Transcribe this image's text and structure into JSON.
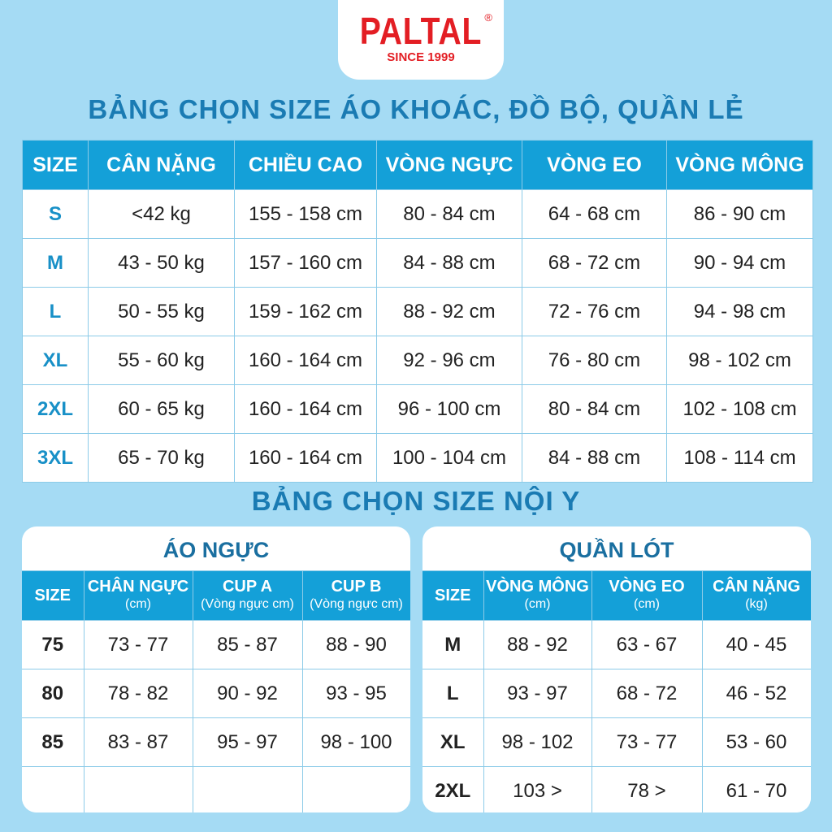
{
  "logo": {
    "brand": "PALTAL",
    "registered": "®",
    "tagline": "SINCE 1999"
  },
  "title_main": "BẢNG CHỌN SIZE ÁO KHOÁC, ĐỒ BỘ, QUẦN LẺ",
  "main_table": {
    "headers": [
      "SIZE",
      "CÂN NẶNG",
      "CHIỀU CAO",
      "VÒNG NGỰC",
      "VÒNG EO",
      "VÒNG MÔNG"
    ],
    "rows": [
      [
        "S",
        "<42 kg",
        "155 - 158 cm",
        "80 - 84 cm",
        "64 - 68 cm",
        "86 - 90 cm"
      ],
      [
        "M",
        "43 - 50 kg",
        "157 - 160 cm",
        "84 - 88 cm",
        "68 - 72 cm",
        "90 - 94 cm"
      ],
      [
        "L",
        "50 - 55 kg",
        "159 - 162 cm",
        "88 - 92 cm",
        "72 - 76 cm",
        "94 - 98 cm"
      ],
      [
        "XL",
        "55 - 60 kg",
        "160 - 164 cm",
        "92 - 96 cm",
        "76 - 80 cm",
        "98 - 102 cm"
      ],
      [
        "2XL",
        "60 - 65 kg",
        "160 - 164 cm",
        "96 - 100 cm",
        "80 - 84 cm",
        "102 - 108 cm"
      ],
      [
        "3XL",
        "65 - 70 kg",
        "160 - 164 cm",
        "100 - 104 cm",
        "84 - 88 cm",
        "108 - 114 cm"
      ]
    ]
  },
  "title_underwear": "BẢNG CHỌN SIZE NỘI Y",
  "bra_table": {
    "title": "ÁO NGỰC",
    "headers": [
      {
        "label": "SIZE",
        "sub": ""
      },
      {
        "label": "CHÂN NGỰC",
        "sub": "(cm)"
      },
      {
        "label": "CUP A",
        "sub": "(Vòng ngực cm)"
      },
      {
        "label": "CUP B",
        "sub": "(Vòng ngực cm)"
      }
    ],
    "rows": [
      [
        "75",
        "73 - 77",
        "85 - 87",
        "88 - 90"
      ],
      [
        "80",
        "78 - 82",
        "90 - 92",
        "93 - 95"
      ],
      [
        "85",
        "83 - 87",
        "95 - 97",
        "98 - 100"
      ],
      [
        "",
        "",
        "",
        ""
      ]
    ]
  },
  "panty_table": {
    "title": "QUẦN LÓT",
    "headers": [
      {
        "label": "SIZE",
        "sub": ""
      },
      {
        "label": "VÒNG MÔNG",
        "sub": "(cm)"
      },
      {
        "label": "VÒNG EO",
        "sub": "(cm)"
      },
      {
        "label": "CÂN NẶNG",
        "sub": "(kg)"
      }
    ],
    "rows": [
      [
        "M",
        "88 - 92",
        "63 - 67",
        "40 - 45"
      ],
      [
        "L",
        "93 - 97",
        "68 - 72",
        "46 - 52"
      ],
      [
        "XL",
        "98 - 102",
        "73 - 77",
        "53 - 60"
      ],
      [
        "2XL",
        "103 >",
        "78 >",
        "61 - 70"
      ]
    ]
  },
  "colors": {
    "background": "#a5dbf4",
    "header": "#14a0d8",
    "title": "#1a7bb3",
    "brand": "#e31e24"
  }
}
